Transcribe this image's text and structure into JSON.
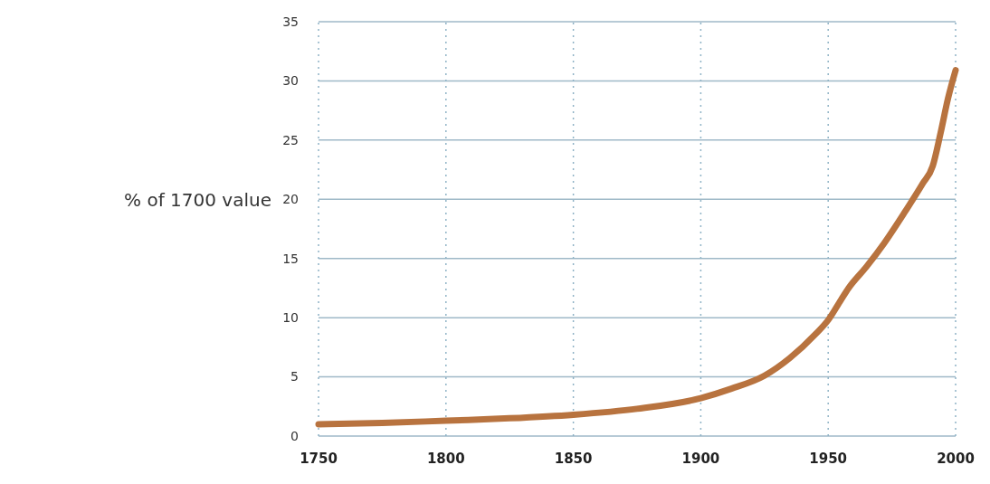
{
  "chart_data": {
    "type": "line",
    "ylabel": "% of 1700 value",
    "xlim": [
      1750,
      2000
    ],
    "xticks": [
      1750,
      1800,
      1850,
      1900,
      1950,
      2000
    ],
    "ylim": [
      0,
      35
    ],
    "yticks": [
      0,
      5,
      10,
      15,
      20,
      25,
      30,
      35
    ],
    "grid": true,
    "marker": "none",
    "line_style": "solid",
    "series": [
      {
        "color": "#b8733f",
        "x": [
          1750,
          1775,
          1800,
          1825,
          1850,
          1875,
          1900,
          1912,
          1925,
          1935,
          1945,
          1950,
          1955,
          1958,
          1965,
          1972,
          1980,
          1987,
          1991,
          1994,
          1997,
          2000
        ],
        "values": [
          1.0,
          1.1,
          1.3,
          1.5,
          1.8,
          2.3,
          3.2,
          4.0,
          5.1,
          6.6,
          8.6,
          9.8,
          11.5,
          12.5,
          14.3,
          16.3,
          18.9,
          21.3,
          22.8,
          25.5,
          28.5,
          30.9
        ]
      }
    ]
  }
}
